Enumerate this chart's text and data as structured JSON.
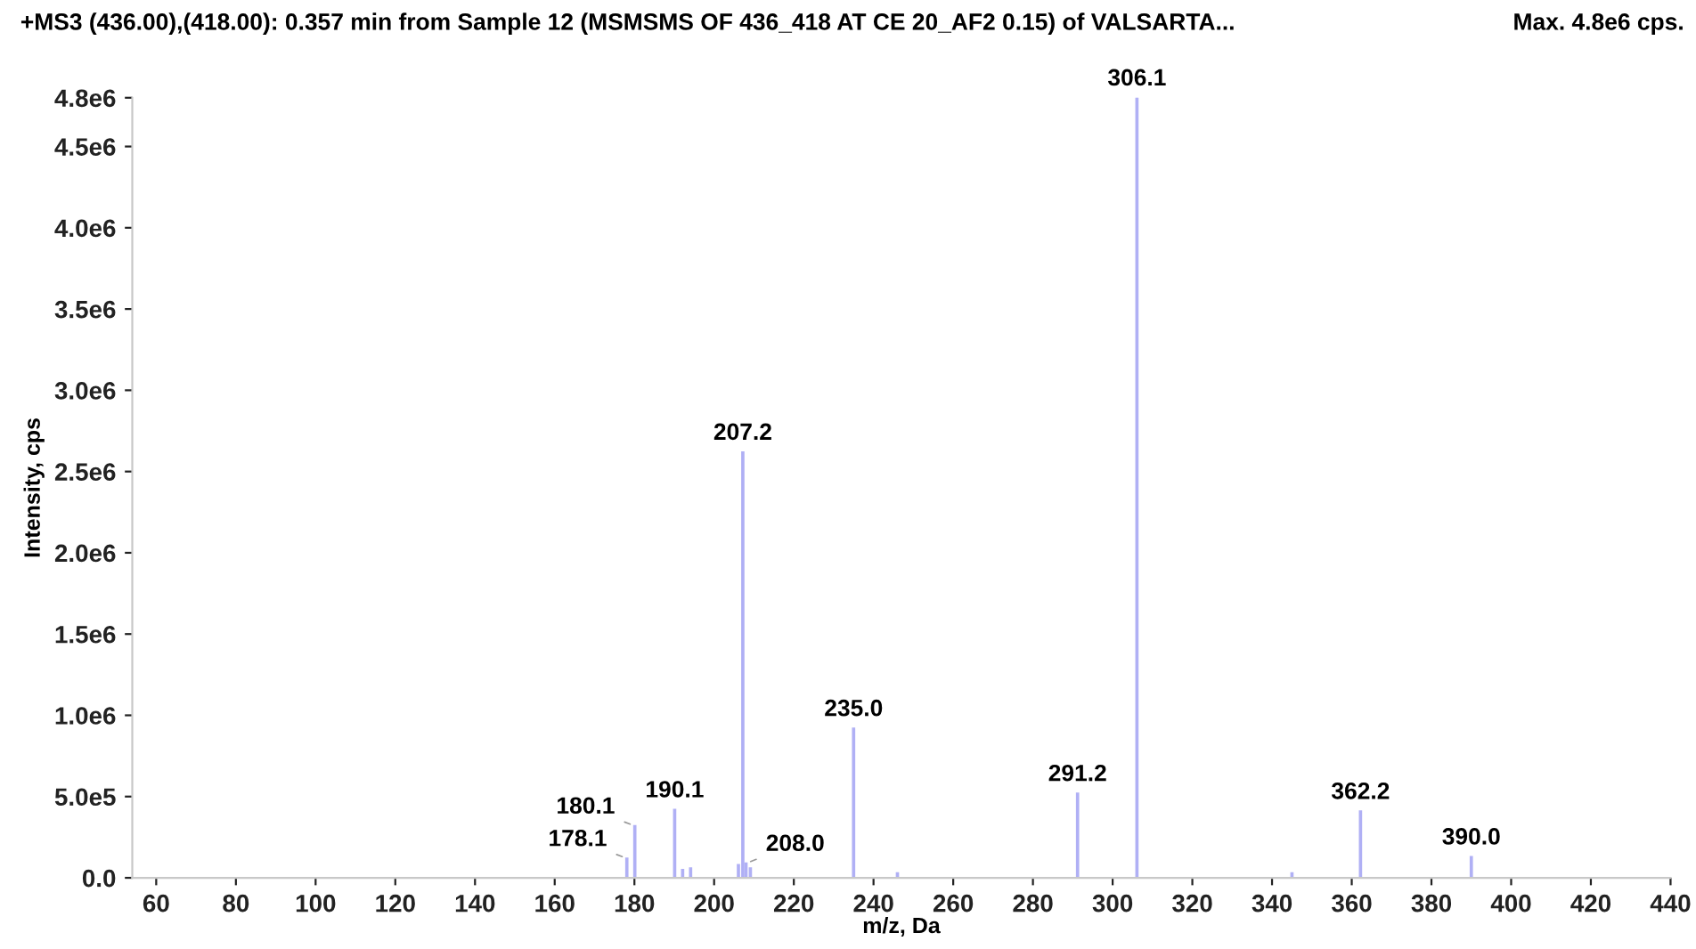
{
  "chart_data": {
    "type": "bar",
    "title": "+MS3 (436.00),(418.00): 0.357 min from Sample 12 (MSMSMS OF 436_418 AT CE 20_AF2 0.15) of VALSARTA...",
    "subtitle": "Max. 4.8e6 cps.",
    "xlabel": "m/z, Da",
    "ylabel": "Intensity, cps",
    "x": [
      178.1,
      180.1,
      190.1,
      192.1,
      194.1,
      206.1,
      207.2,
      208.0,
      209.1,
      235.0,
      246.0,
      291.2,
      306.1,
      345.0,
      362.2,
      390.0
    ],
    "values": [
      120000,
      320000,
      420000,
      50000,
      60000,
      80000,
      2620000,
      90000,
      60000,
      920000,
      30000,
      520000,
      4800000,
      30000,
      410000,
      130000
    ],
    "annotations": [
      {
        "text": "178.1",
        "x": 178.1,
        "y": 120000
      },
      {
        "text": "180.1",
        "x": 180.1,
        "y": 320000
      },
      {
        "text": "190.1",
        "x": 190.1,
        "y": 420000
      },
      {
        "text": "207.2",
        "x": 207.2,
        "y": 2620000
      },
      {
        "text": "208.0",
        "x": 208.0,
        "y": 90000
      },
      {
        "text": "235.0",
        "x": 235.0,
        "y": 920000
      },
      {
        "text": "291.2",
        "x": 291.2,
        "y": 520000
      },
      {
        "text": "306.1",
        "x": 306.1,
        "y": 4800000
      },
      {
        "text": "362.2",
        "x": 362.2,
        "y": 410000
      },
      {
        "text": "390.0",
        "x": 390.0,
        "y": 130000
      }
    ],
    "color": "#b0b0f5",
    "xlim": [
      54,
      440
    ],
    "xticks": [
      60,
      80,
      100,
      120,
      140,
      160,
      180,
      200,
      220,
      240,
      260,
      280,
      300,
      320,
      340,
      360,
      380,
      400,
      420,
      440
    ],
    "ylim": [
      0,
      4800000
    ],
    "yticks": [
      {
        "value": 0,
        "label": "0.0"
      },
      {
        "value": 500000,
        "label": "5.0e5"
      },
      {
        "value": 1000000,
        "label": "1.0e6"
      },
      {
        "value": 1500000,
        "label": "1.5e6"
      },
      {
        "value": 2000000,
        "label": "2.0e6"
      },
      {
        "value": 2500000,
        "label": "2.5e6"
      },
      {
        "value": 3000000,
        "label": "3.0e6"
      },
      {
        "value": 3500000,
        "label": "3.5e6"
      },
      {
        "value": 4000000,
        "label": "4.0e6"
      },
      {
        "value": 4500000,
        "label": "4.5e6"
      },
      {
        "value": 4800000,
        "label": "4.8e6"
      }
    ],
    "grid": false
  }
}
